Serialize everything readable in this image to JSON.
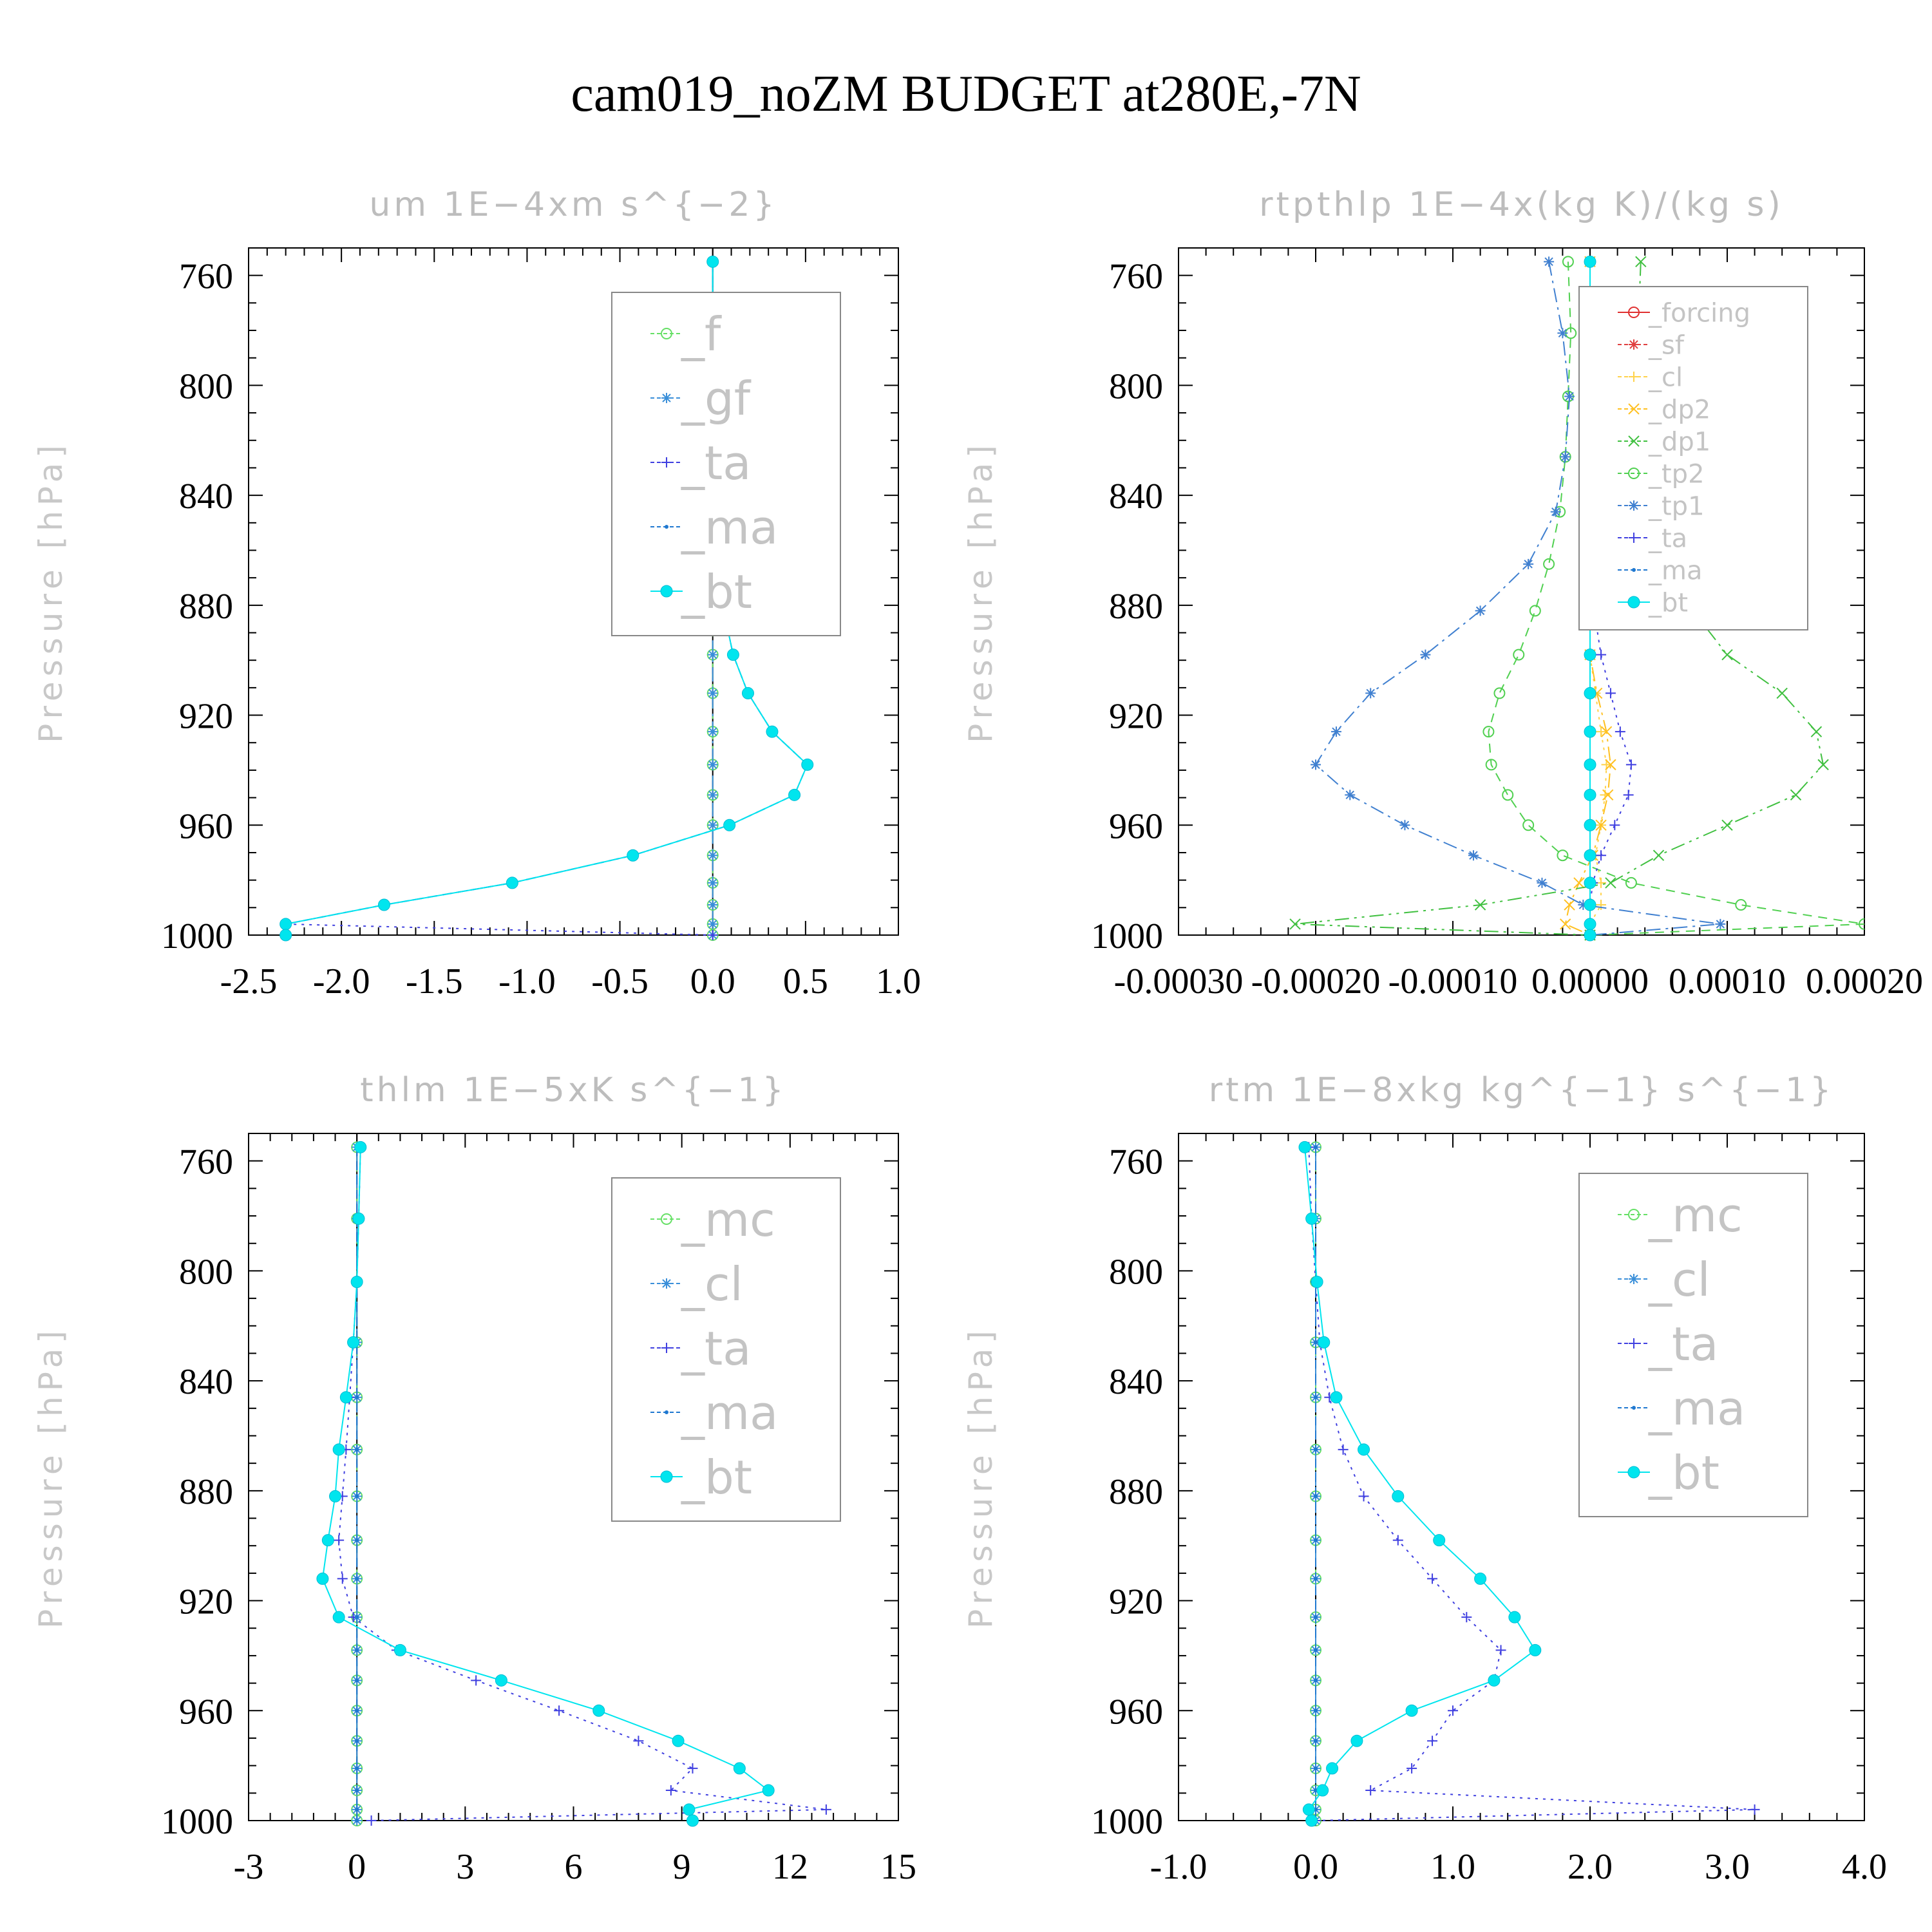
{
  "figure": {
    "title": "cam019_noZM  BUDGET at280E,-7N"
  },
  "chart_data": [
    {
      "type": "line",
      "title": "um   1E−4xm s^{−2}",
      "ylabel": "Pressure [hPa]",
      "xlim": [
        -2.5,
        1.0
      ],
      "ylim": [
        1000,
        750
      ],
      "xticks": [
        "-2.5",
        "-2.0",
        "-1.5",
        "-1.0",
        "-0.5",
        "0.0",
        "0.5",
        "1.0"
      ],
      "xtick_values": [
        -2.5,
        -2.0,
        -1.5,
        -1.0,
        -0.5,
        0.0,
        0.5,
        1.0
      ],
      "yticks": [
        760,
        800,
        840,
        880,
        920,
        960,
        1000
      ],
      "legend_position": "top-right",
      "y": [
        755,
        781,
        804,
        826,
        846,
        865,
        882,
        898,
        912,
        926,
        938,
        949,
        960,
        971,
        981,
        989,
        996,
        1000
      ],
      "series": [
        {
          "name": "_f",
          "color": "#66e066",
          "marker": "circle-open",
          "dash": "6,10",
          "values": [
            0,
            0,
            0,
            0,
            0,
            0,
            0,
            0,
            0,
            0,
            0,
            0,
            0,
            0,
            0,
            0,
            0,
            0
          ]
        },
        {
          "name": "_gf",
          "color": "#3a8fd9",
          "marker": "star",
          "dash": "22,8,4,8",
          "values": [
            0,
            0,
            0,
            0,
            0,
            0,
            0,
            0,
            0,
            0,
            0,
            0,
            0,
            0,
            0,
            0,
            0,
            0
          ]
        },
        {
          "name": "_ta",
          "color": "#4040e0",
          "marker": "plus",
          "dash": "4,8",
          "values": [
            0,
            0,
            0,
            0,
            0,
            0.03,
            0.06,
            0.11,
            0.19,
            0.32,
            0.51,
            0.44,
            0.09,
            -0.43,
            -1.08,
            -1.77,
            -2.3,
            0
          ]
        },
        {
          "name": "_ma",
          "color": "#1f78d0",
          "marker": "dot",
          "dash": "14,8",
          "values": [
            0,
            0,
            0,
            0,
            0,
            0.03,
            0.06,
            0.11,
            0.19,
            0.32,
            0.51,
            0.44,
            0.09,
            -0.43,
            -1.08,
            -1.77,
            -2.3,
            -2.3
          ]
        },
        {
          "name": "_bt",
          "color": "#00e5ee",
          "marker": "filled",
          "dash": "",
          "values": [
            0,
            0,
            0,
            0,
            0,
            0.03,
            0.06,
            0.11,
            0.19,
            0.32,
            0.51,
            0.44,
            0.09,
            -0.43,
            -1.08,
            -1.77,
            -2.3,
            -2.3
          ]
        }
      ]
    },
    {
      "type": "line",
      "title": "rtpthlp   1E−4x(kg K)/(kg s)",
      "ylabel": "Pressure [hPa]",
      "xlim": [
        -0.0003,
        0.0002
      ],
      "ylim": [
        1000,
        750
      ],
      "xticks": [
        "-0.00030",
        "-0.00020",
        "-0.00010",
        "0.00000",
        "0.00010",
        "0.00020"
      ],
      "xtick_values": [
        -0.0003,
        -0.0002,
        -0.0001,
        0.0,
        0.0001,
        0.0002
      ],
      "yticks": [
        760,
        800,
        840,
        880,
        920,
        960,
        1000
      ],
      "legend_position": "top-right",
      "y": [
        755,
        781,
        804,
        826,
        846,
        865,
        882,
        898,
        912,
        926,
        938,
        949,
        960,
        971,
        981,
        989,
        996,
        1000
      ],
      "series": [
        {
          "name": "_forcing",
          "color": "#e03030",
          "marker": "circle-open",
          "dash": "",
          "values": [
            0,
            0,
            0,
            0,
            0,
            0,
            0,
            0,
            0,
            0,
            0,
            0,
            0,
            0,
            0,
            0,
            0,
            0
          ]
        },
        {
          "name": "_sf",
          "color": "#e04040",
          "marker": "star",
          "dash": "14,8",
          "values": [
            0,
            0,
            0,
            0,
            0,
            0,
            0,
            0,
            0,
            0,
            0,
            0,
            0,
            0,
            0,
            0,
            0,
            0
          ]
        },
        {
          "name": "_cl",
          "color": "#ffd24a",
          "marker": "plus",
          "dash": "4,8",
          "values": [
            0,
            0,
            0,
            0,
            0,
            0,
            0,
            0,
            4e-06,
            8e-06,
            1.2e-05,
            1.1e-05,
            8e-06,
            4e-06,
            8e-06,
            8e-06,
            0,
            0
          ]
        },
        {
          "name": "_dp2",
          "color": "#ffc020",
          "marker": "cross",
          "dash": "22,8,4,8",
          "values": [
            0,
            0,
            0,
            0,
            0,
            0,
            0,
            0,
            5e-06,
            1.2e-05,
            1.5e-05,
            1.3e-05,
            8e-06,
            2e-06,
            -8e-06,
            -1.5e-05,
            -1.8e-05,
            0
          ]
        },
        {
          "name": "_dp1",
          "color": "#40c040",
          "marker": "cross",
          "dash": "22,8,4,8,4,8",
          "values": [
            3.7e-05,
            3.5e-05,
            3.7e-05,
            4e-05,
            4.2e-05,
            5.5e-05,
            7.5e-05,
            0.0001,
            0.00014,
            0.000165,
            0.00017,
            0.00015,
            0.0001,
            5e-05,
            1.5e-05,
            -8e-05,
            -0.000215,
            0
          ]
        },
        {
          "name": "_tp2",
          "color": "#50d050",
          "marker": "circle-open",
          "dash": "14,10",
          "values": [
            -1.6e-05,
            -1.4e-05,
            -1.6e-05,
            -1.8e-05,
            -2.2e-05,
            -3e-05,
            -4e-05,
            -5.2e-05,
            -6.6e-05,
            -7.4e-05,
            -7.2e-05,
            -6e-05,
            -4.5e-05,
            -2e-05,
            3e-05,
            0.00011,
            0.0002,
            0
          ]
        },
        {
          "name": "_tp1",
          "color": "#4080d0",
          "marker": "star",
          "dash": "22,8,4,8",
          "values": [
            -3e-05,
            -2e-05,
            -1.5e-05,
            -1.8e-05,
            -2.5e-05,
            -4.5e-05,
            -8e-05,
            -0.00012,
            -0.00016,
            -0.000185,
            -0.0002,
            -0.000175,
            -0.000135,
            -8.5e-05,
            -3.5e-05,
            -5e-06,
            9.5e-05,
            0
          ]
        },
        {
          "name": "_ta",
          "color": "#4040e0",
          "marker": "plus",
          "dash": "4,8",
          "values": [
            0,
            0,
            0,
            0,
            0,
            0,
            3e-06,
            8e-06,
            1.5e-05,
            2.2e-05,
            3e-05,
            2.8e-05,
            1.8e-05,
            8e-06,
            2e-06,
            0,
            0,
            0
          ]
        },
        {
          "name": "_ma",
          "color": "#1f78d0",
          "marker": "dot",
          "dash": "14,8",
          "values": [
            0,
            0,
            0,
            0,
            0,
            0,
            0,
            0,
            0,
            0,
            0,
            0,
            0,
            0,
            0,
            0,
            0,
            0
          ]
        },
        {
          "name": "_bt",
          "color": "#00e5ee",
          "marker": "filled",
          "dash": "",
          "values": [
            0,
            0,
            0,
            0,
            0,
            0,
            0,
            0,
            0,
            0,
            0,
            0,
            0,
            0,
            0,
            0,
            0,
            0
          ]
        }
      ]
    },
    {
      "type": "line",
      "title": "thlm   1E−5xK s^{−1}",
      "ylabel": "Pressure [hPa]",
      "xlim": [
        -3,
        15
      ],
      "ylim": [
        1000,
        750
      ],
      "xticks": [
        "-3",
        "0",
        "3",
        "6",
        "9",
        "12",
        "15"
      ],
      "xtick_values": [
        -3,
        0,
        3,
        6,
        9,
        12,
        15
      ],
      "yticks": [
        760,
        800,
        840,
        880,
        920,
        960,
        1000
      ],
      "legend_position": "top-right",
      "y": [
        755,
        781,
        804,
        826,
        846,
        865,
        882,
        898,
        912,
        926,
        938,
        949,
        960,
        971,
        981,
        989,
        996,
        1000
      ],
      "series": [
        {
          "name": "_mc",
          "color": "#66e066",
          "marker": "circle-open",
          "dash": "6,10",
          "values": [
            0,
            0,
            0,
            0,
            0,
            0,
            0,
            0,
            0,
            0,
            0,
            0,
            0,
            0,
            0,
            0,
            0,
            0
          ]
        },
        {
          "name": "_cl",
          "color": "#3a8fd9",
          "marker": "star",
          "dash": "22,8,4,8",
          "values": [
            0,
            0,
            0,
            0,
            0,
            0,
            0,
            0,
            0,
            0,
            0,
            0,
            0,
            0,
            0,
            0,
            0,
            0
          ]
        },
        {
          "name": "_ta",
          "color": "#4040e0",
          "marker": "plus",
          "dash": "4,8",
          "values": [
            0.1,
            0.05,
            0,
            -0.1,
            -0.2,
            -0.3,
            -0.4,
            -0.5,
            -0.4,
            -0.1,
            1.1,
            3.3,
            5.6,
            7.8,
            9.3,
            8.7,
            13,
            0.4
          ]
        },
        {
          "name": "_ma",
          "color": "#1f78d0",
          "marker": "dot",
          "dash": "14,8",
          "values": [
            0,
            0,
            0,
            0,
            0,
            0,
            0,
            0,
            0,
            0,
            0,
            0,
            0,
            0,
            0,
            0,
            0,
            0
          ]
        },
        {
          "name": "_bt",
          "color": "#00e5ee",
          "marker": "filled",
          "dash": "",
          "values": [
            0.1,
            0.05,
            0,
            -0.1,
            -0.3,
            -0.5,
            -0.6,
            -0.8,
            -0.95,
            -0.5,
            1.2,
            4.0,
            6.7,
            8.9,
            10.6,
            11.4,
            9.2,
            9.3
          ]
        }
      ]
    },
    {
      "type": "line",
      "title": "rtm   1E−8xkg kg^{−1} s^{−1}",
      "ylabel": "Pressure [hPa]",
      "xlim": [
        -1.0,
        4.0
      ],
      "ylim": [
        1000,
        750
      ],
      "xticks": [
        "-1.0",
        "0.0",
        "1.0",
        "2.0",
        "3.0",
        "4.0"
      ],
      "xtick_values": [
        -1.0,
        0.0,
        1.0,
        2.0,
        3.0,
        4.0
      ],
      "yticks": [
        760,
        800,
        840,
        880,
        920,
        960,
        1000
      ],
      "legend_position": "top-right",
      "y": [
        755,
        781,
        804,
        826,
        846,
        865,
        882,
        898,
        912,
        926,
        938,
        949,
        960,
        971,
        981,
        989,
        996,
        1000
      ],
      "series": [
        {
          "name": "_mc",
          "color": "#66e066",
          "marker": "circle-open",
          "dash": "6,10",
          "values": [
            0,
            0,
            0,
            0,
            0,
            0,
            0,
            0,
            0,
            0,
            0,
            0,
            0,
            0,
            0,
            0,
            0,
            0
          ]
        },
        {
          "name": "_cl",
          "color": "#3a8fd9",
          "marker": "star",
          "dash": "22,8,4,8",
          "values": [
            0,
            0,
            0,
            0,
            0,
            0,
            0,
            0,
            0,
            0,
            0,
            0,
            0,
            0,
            0,
            0,
            0,
            0
          ]
        },
        {
          "name": "_ta",
          "color": "#4040e0",
          "marker": "plus",
          "dash": "4,8",
          "values": [
            -0.05,
            -0.03,
            0,
            0.03,
            0.1,
            0.2,
            0.35,
            0.6,
            0.85,
            1.1,
            1.35,
            1.3,
            1.0,
            0.85,
            0.7,
            0.4,
            3.2,
            0
          ]
        },
        {
          "name": "_ma",
          "color": "#1f78d0",
          "marker": "dot",
          "dash": "14,8",
          "values": [
            0,
            0,
            0,
            0,
            0,
            0,
            0,
            0,
            0,
            0,
            0,
            0,
            0,
            0,
            0,
            0,
            0,
            0
          ]
        },
        {
          "name": "_bt",
          "color": "#00e5ee",
          "marker": "filled",
          "dash": "",
          "values": [
            -0.08,
            -0.03,
            0.01,
            0.06,
            0.15,
            0.35,
            0.6,
            0.9,
            1.2,
            1.45,
            1.6,
            1.3,
            0.7,
            0.3,
            0.12,
            0.05,
            -0.05,
            -0.03
          ]
        }
      ]
    }
  ]
}
